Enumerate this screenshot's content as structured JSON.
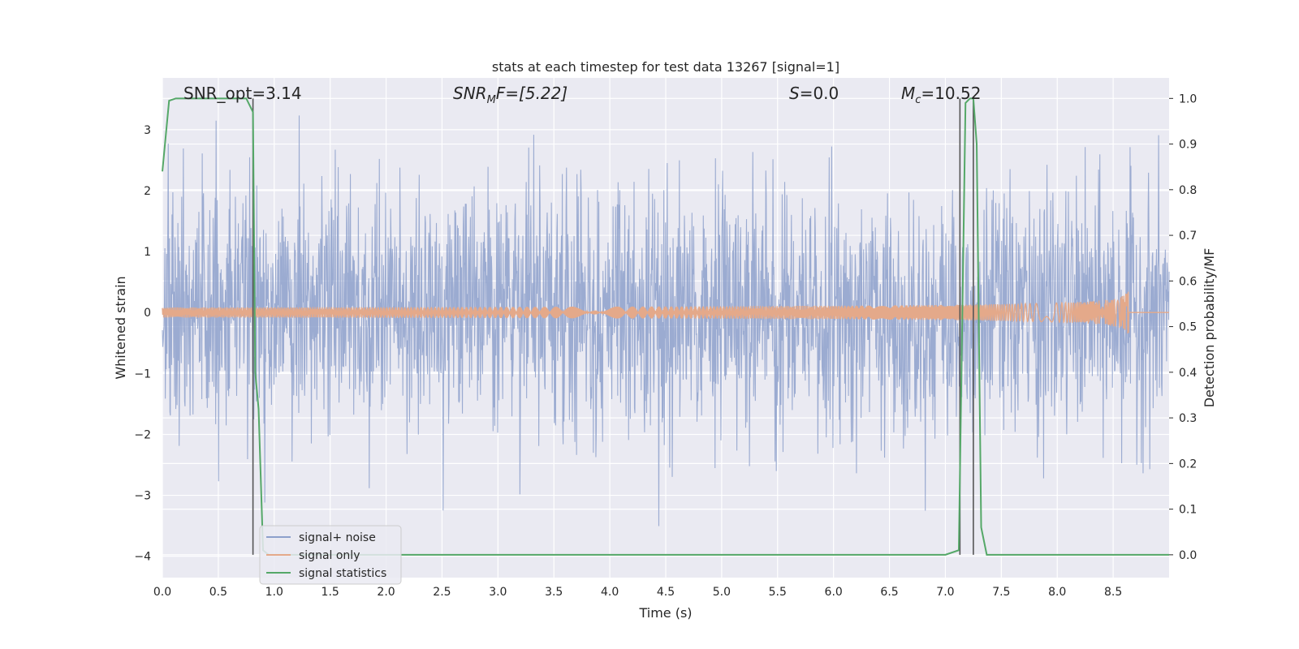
{
  "chart_data": {
    "type": "line",
    "title": "stats at each timestep for test data 13267 [signal=1]",
    "xlabel": "Time (s)",
    "ylabel": "Whitened strain",
    "y2label": "Detection probability/MF",
    "xlim": [
      0.0,
      9.0
    ],
    "ylim": [
      -4.35,
      3.85
    ],
    "y2lim": [
      -0.05,
      1.045
    ],
    "xticks": [
      "0.0",
      "0.5",
      "1.0",
      "1.5",
      "2.0",
      "2.5",
      "3.0",
      "3.5",
      "4.0",
      "4.5",
      "5.0",
      "5.5",
      "6.0",
      "6.5",
      "7.0",
      "7.5",
      "8.0",
      "8.5"
    ],
    "yticks": [
      "3",
      "2",
      "1",
      "0",
      "−1",
      "−2",
      "−3",
      "−4"
    ],
    "y2ticks": [
      "1.0",
      "0.9",
      "0.8",
      "0.7",
      "0.6",
      "0.5",
      "0.4",
      "0.3",
      "0.2",
      "0.1",
      "0.0"
    ],
    "grid": true,
    "legend_position": "lower-left",
    "annotations": {
      "snr_opt": "SNR_opt=3.14",
      "snr_mf_main": "SNR",
      "snr_mf_sub": "M",
      "snr_mf_rest": "F=[5.22]",
      "s_main": "S",
      "s_rest": "=0.0",
      "mc_main": "M",
      "mc_sub": "c",
      "mc_rest": "=10.52"
    },
    "vertical_lines": [
      0.81,
      7.13,
      7.25
    ],
    "series": [
      {
        "name": "signal+ noise",
        "color": "#8da0cb",
        "description_kind": "noise",
        "amplitude_std": 1.0,
        "t_start": 0.0,
        "t_end": 9.0
      },
      {
        "name": "signal only",
        "color": "#e4a98a",
        "description_kind": "chirp",
        "t_start": 0.0,
        "t_peak": 8.64,
        "peak_amplitude": 0.38
      },
      {
        "name": "signal statistics",
        "color": "#55a868",
        "x": [
          0.0,
          0.06,
          0.12,
          0.2,
          0.4,
          0.6,
          0.75,
          0.81,
          0.83,
          0.86,
          0.9,
          0.95,
          1.5,
          2.0,
          2.3,
          2.4,
          3.0,
          5.0,
          7.0,
          7.12,
          7.15,
          7.18,
          7.22,
          7.25,
          7.28,
          7.32,
          7.37,
          7.5,
          8.0,
          8.3,
          8.5,
          9.0
        ],
        "y": [
          0.84,
          0.995,
          1.0,
          1.0,
          1.0,
          1.0,
          1.0,
          0.97,
          0.4,
          0.32,
          0.01,
          0.0,
          0.0,
          0.0,
          0.0,
          0.0,
          0.0,
          0.0,
          0.0,
          0.01,
          0.5,
          0.99,
          1.0,
          1.0,
          0.9,
          0.06,
          0.0,
          0.0,
          0.0,
          0.0,
          0.0,
          0.0
        ]
      }
    ]
  }
}
